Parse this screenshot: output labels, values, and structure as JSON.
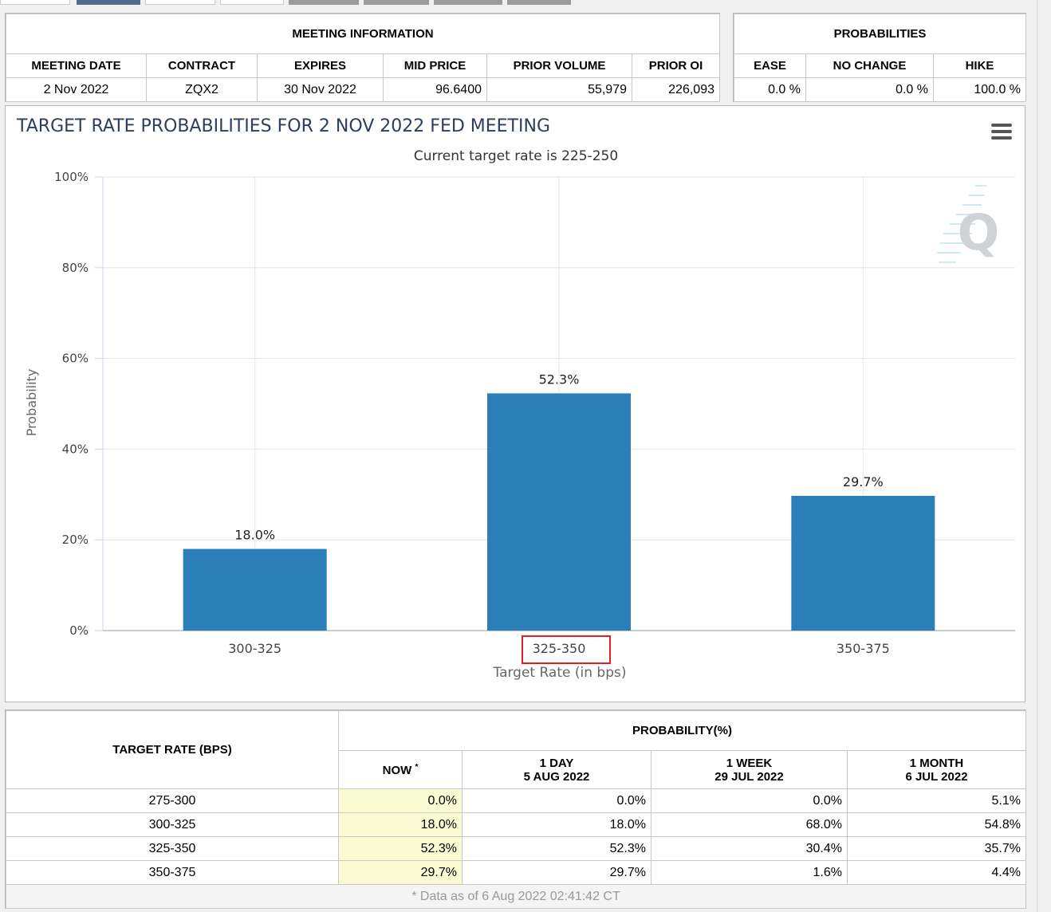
{
  "meeting_info": {
    "header": "MEETING INFORMATION",
    "columns": [
      "MEETING DATE",
      "CONTRACT",
      "EXPIRES",
      "MID PRICE",
      "PRIOR VOLUME",
      "PRIOR OI"
    ],
    "row": [
      "2 Nov 2022",
      "ZQX2",
      "30 Nov 2022",
      "96.6400",
      "55,979",
      "226,093"
    ]
  },
  "probabilities": {
    "header": "PROBABILITIES",
    "columns": [
      "EASE",
      "NO CHANGE",
      "HIKE"
    ],
    "row": [
      "0.0 %",
      "0.0 %",
      "100.0 %"
    ]
  },
  "chart_data": {
    "type": "bar",
    "title": "TARGET RATE PROBABILITIES FOR 2 NOV 2022 FED MEETING",
    "subtitle": "Current target rate is 225-250",
    "categories": [
      "300-325",
      "325-350",
      "350-375"
    ],
    "values": [
      18.0,
      52.3,
      29.7
    ],
    "data_labels": [
      "18.0%",
      "52.3%",
      "29.7%"
    ],
    "xlabel": "Target Rate (in bps)",
    "ylabel": "Probability",
    "ylim": [
      0,
      100
    ],
    "yticks": [
      0,
      20,
      40,
      60,
      80,
      100
    ],
    "ytick_labels": [
      "0%",
      "20%",
      "40%",
      "60%",
      "80%",
      "100%"
    ],
    "highlighted_category": "325-350",
    "bar_color": "#2a7fb8",
    "grid": true
  },
  "prob_table": {
    "target_header": "TARGET RATE (BPS)",
    "prob_header": "PROBABILITY(%)",
    "now_label": "NOW",
    "now_mark": "*",
    "period_columns": [
      {
        "label": "1 DAY",
        "date": "5 AUG 2022"
      },
      {
        "label": "1 WEEK",
        "date": "29 JUL 2022"
      },
      {
        "label": "1 MONTH",
        "date": "6 JUL 2022"
      }
    ],
    "rows": [
      {
        "rate": "275-300",
        "now": "0.0%",
        "day": "0.0%",
        "week": "0.0%",
        "month": "5.1%"
      },
      {
        "rate": "300-325",
        "now": "18.0%",
        "day": "18.0%",
        "week": "68.0%",
        "month": "54.8%"
      },
      {
        "rate": "325-350",
        "now": "52.3%",
        "day": "52.3%",
        "week": "30.4%",
        "month": "35.7%"
      },
      {
        "rate": "350-375",
        "now": "29.7%",
        "day": "29.7%",
        "week": "1.6%",
        "month": "4.4%"
      }
    ],
    "footnote": "* Data as of 6 Aug 2022 02:41:42 CT"
  },
  "colors": {
    "highlight_box": "#e02020",
    "now_column_bg": "#fbfbd3",
    "title_color": "#2d3e5c"
  }
}
